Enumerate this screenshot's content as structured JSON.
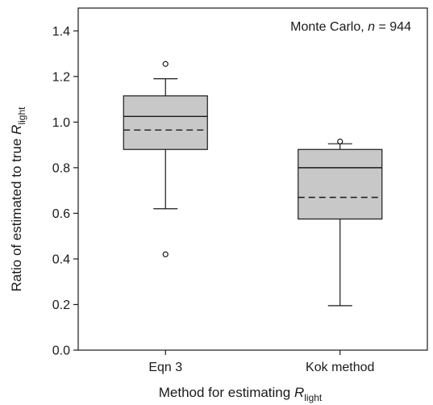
{
  "chart_data": {
    "type": "boxplot",
    "annotation": {
      "prefix": "Monte Carlo, ",
      "italic": "n",
      "suffix": " = 944"
    },
    "xlabel": {
      "prefix": "Method for estimating ",
      "italic": "R",
      "subscript": "light"
    },
    "ylabel": {
      "prefix": "Ratio of estimated to true ",
      "italic": "R",
      "subscript": "light"
    },
    "ylim": [
      0.0,
      1.5
    ],
    "yticks": [
      "0.0",
      "0.2",
      "0.4",
      "0.6",
      "0.8",
      "1.0",
      "1.2",
      "1.4"
    ],
    "categories": [
      "Eqn 3",
      "Kok method"
    ],
    "boxes": [
      {
        "category": "Eqn 3",
        "whisker_low": 0.62,
        "q1": 0.88,
        "median": 1.025,
        "mean": 0.965,
        "q3": 1.115,
        "whisker_high": 1.19,
        "outliers": [
          0.42,
          1.255
        ]
      },
      {
        "category": "Kok method",
        "whisker_low": 0.195,
        "q1": 0.575,
        "median": 0.8,
        "mean": 0.67,
        "q3": 0.88,
        "whisker_high": 0.905,
        "outliers": [
          0.915
        ]
      }
    ],
    "colors": {
      "box_fill": "#c8c8c8",
      "line": "#1a1a1a"
    },
    "legend": "none",
    "grid": false
  }
}
